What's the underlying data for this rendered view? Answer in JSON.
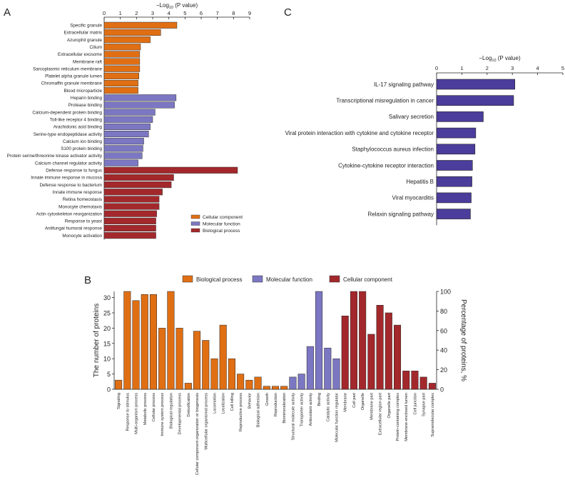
{
  "panels": {
    "a": "A",
    "b": "B",
    "c": "C"
  },
  "colors": {
    "cellular_component": "#e06f14",
    "molecular_function": "#7c77c2",
    "biological_process": "#a3282c",
    "pathway": "#4b3d9b"
  },
  "chart_data": [
    {
      "type": "bar",
      "orientation": "horizontal",
      "panel": "A",
      "xlabel": "−Log10 (P value)",
      "xlim": [
        0,
        9
      ],
      "xticks": [
        0,
        1,
        2,
        3,
        4,
        5,
        6,
        7,
        8,
        9
      ],
      "legend": [
        {
          "name": "Cellular component",
          "key": "cellular_component"
        },
        {
          "name": "Molecular function",
          "key": "molecular_function"
        },
        {
          "name": "Biological process",
          "key": "biological_process"
        }
      ],
      "legend_position": "bottom-right",
      "bars": [
        {
          "label": "Specific granule",
          "value": 4.5,
          "group": "cellular_component"
        },
        {
          "label": "Extracellular matrix",
          "value": 3.5,
          "group": "cellular_component"
        },
        {
          "label": "Azurophil granule",
          "value": 2.85,
          "group": "cellular_component"
        },
        {
          "label": "Cilium",
          "value": 2.25,
          "group": "cellular_component"
        },
        {
          "label": "Extracellular exosome",
          "value": 2.2,
          "group": "cellular_component"
        },
        {
          "label": "Membrane raft",
          "value": 2.2,
          "group": "cellular_component"
        },
        {
          "label": "Sarcoplasmic reticulum membrane",
          "value": 2.2,
          "group": "cellular_component"
        },
        {
          "label": "Platelet alpha granule lumen",
          "value": 2.15,
          "group": "cellular_component"
        },
        {
          "label": "Chromaffin granule membrane",
          "value": 2.1,
          "group": "cellular_component"
        },
        {
          "label": "Blood microparticle",
          "value": 2.1,
          "group": "cellular_component"
        },
        {
          "label": "Heparin binding",
          "value": 4.45,
          "group": "molecular_function"
        },
        {
          "label": "Protease binding",
          "value": 4.35,
          "group": "molecular_function"
        },
        {
          "label": "Calcium-dependent protein binding",
          "value": 3.15,
          "group": "molecular_function"
        },
        {
          "label": "Toll-like receptor 4 binding",
          "value": 3.0,
          "group": "molecular_function"
        },
        {
          "label": "Arachidonic acid binding",
          "value": 2.85,
          "group": "molecular_function"
        },
        {
          "label": "Serine-type endopeptidase activity",
          "value": 2.75,
          "group": "molecular_function"
        },
        {
          "label": "Calcium ion binding",
          "value": 2.45,
          "group": "molecular_function"
        },
        {
          "label": "S100 protein binding",
          "value": 2.4,
          "group": "molecular_function"
        },
        {
          "label": "Protein serine/threonine kinase activator activity",
          "value": 2.35,
          "group": "molecular_function"
        },
        {
          "label": "Calcium channel regulator activity",
          "value": 2.1,
          "group": "molecular_function"
        },
        {
          "label": "Defense response to fungus",
          "value": 8.25,
          "group": "biological_process"
        },
        {
          "label": "Innate immune response in mucosa",
          "value": 4.3,
          "group": "biological_process"
        },
        {
          "label": "Defense response to bacterium",
          "value": 4.15,
          "group": "biological_process"
        },
        {
          "label": "Innate immune response",
          "value": 3.6,
          "group": "biological_process"
        },
        {
          "label": "Retina homeostasis",
          "value": 3.4,
          "group": "biological_process"
        },
        {
          "label": "Monocyte chemotaxis",
          "value": 3.4,
          "group": "biological_process"
        },
        {
          "label": "Actin cytoskeleton reorganization",
          "value": 3.25,
          "group": "biological_process"
        },
        {
          "label": "Response to yeast",
          "value": 3.2,
          "group": "biological_process"
        },
        {
          "label": "Antifungal humoral response",
          "value": 3.2,
          "group": "biological_process"
        },
        {
          "label": "Monocyte activation",
          "value": 3.2,
          "group": "biological_process"
        }
      ]
    },
    {
      "type": "bar",
      "orientation": "vertical",
      "panel": "B",
      "ylabel": "The number of proteins",
      "ylabel_right": "Percentage of proteins, %",
      "ylim": [
        0,
        32
      ],
      "yticks": [
        0,
        5,
        10,
        15,
        20,
        25,
        30
      ],
      "ylim_right": [
        0,
        100
      ],
      "yticks_right": [
        0,
        20,
        40,
        60,
        80,
        100
      ],
      "legend": [
        {
          "name": "Biological process",
          "key": "cellular_component"
        },
        {
          "name": "Molecular function",
          "key": "molecular_function"
        },
        {
          "name": "Cellular component",
          "key": "biological_process"
        }
      ],
      "legend_position": "top",
      "bars": [
        {
          "label": "Signaling",
          "value": 3,
          "group": "cellular_component"
        },
        {
          "label": "Response to stimulus",
          "value": 32,
          "group": "cellular_component"
        },
        {
          "label": "Multi-organism process",
          "value": 29,
          "group": "cellular_component"
        },
        {
          "label": "Metabolic process",
          "value": 31,
          "group": "cellular_component"
        },
        {
          "label": "Cellular process",
          "value": 31,
          "group": "cellular_component"
        },
        {
          "label": "Immune system process",
          "value": 20,
          "group": "cellular_component"
        },
        {
          "label": "Biological regulation",
          "value": 32,
          "group": "cellular_component"
        },
        {
          "label": "Developmental process",
          "value": 20,
          "group": "cellular_component"
        },
        {
          "label": "Detoxification",
          "value": 2,
          "group": "cellular_component"
        },
        {
          "label": "Cellular component organization or biogenesis",
          "value": 19,
          "group": "cellular_component"
        },
        {
          "label": "Multicellular organismal process",
          "value": 16,
          "group": "cellular_component"
        },
        {
          "label": "Locomotion",
          "value": 10,
          "group": "cellular_component"
        },
        {
          "label": "Localization",
          "value": 21,
          "group": "cellular_component"
        },
        {
          "label": "Cell killing",
          "value": 10,
          "group": "cellular_component"
        },
        {
          "label": "Reproductive process",
          "value": 5,
          "group": "cellular_component"
        },
        {
          "label": "Behavior",
          "value": 3,
          "group": "cellular_component"
        },
        {
          "label": "Biological adhesion",
          "value": 4,
          "group": "cellular_component"
        },
        {
          "label": "Growth",
          "value": 1,
          "group": "cellular_component"
        },
        {
          "label": "Reproduction",
          "value": 1,
          "group": "cellular_component"
        },
        {
          "label": "Biomineralization",
          "value": 1,
          "group": "cellular_component"
        },
        {
          "label": "Structural molecule activity",
          "value": 4,
          "group": "molecular_function"
        },
        {
          "label": "Transporter activity",
          "value": 5,
          "group": "molecular_function"
        },
        {
          "label": "Antioxidant activity",
          "value": 14,
          "group": "molecular_function"
        },
        {
          "label": "Binding",
          "value": 32,
          "group": "molecular_function"
        },
        {
          "label": "Catalytic activity",
          "value": 13.5,
          "group": "molecular_function"
        },
        {
          "label": "Molecular function regulator",
          "value": 10,
          "group": "molecular_function"
        },
        {
          "label": "Membrane",
          "value": 24,
          "group": "biological_process"
        },
        {
          "label": "Cell part",
          "value": 32,
          "group": "biological_process"
        },
        {
          "label": "Organelle",
          "value": 32,
          "group": "biological_process"
        },
        {
          "label": "Membrane part",
          "value": 18,
          "group": "biological_process"
        },
        {
          "label": "Extracellular region part",
          "value": 27.5,
          "group": "biological_process"
        },
        {
          "label": "Organelle part",
          "value": 25,
          "group": "biological_process"
        },
        {
          "label": "Protein-containing complex",
          "value": 21,
          "group": "biological_process"
        },
        {
          "label": "Membrane-enclosed lumen",
          "value": 6,
          "group": "biological_process"
        },
        {
          "label": "Cell junction",
          "value": 6,
          "group": "biological_process"
        },
        {
          "label": "Synapse part",
          "value": 4,
          "group": "biological_process"
        },
        {
          "label": "Supramolecular complex",
          "value": 2,
          "group": "biological_process"
        }
      ]
    },
    {
      "type": "bar",
      "orientation": "horizontal",
      "panel": "C",
      "xlabel": "−Log10 (P value)",
      "xlim": [
        0,
        5
      ],
      "xticks": [
        0,
        1,
        2,
        3,
        4,
        5
      ],
      "bars": [
        {
          "label": "IL-17 signaling pathway",
          "value": 3.1,
          "group": "pathway"
        },
        {
          "label": "Transcriptional misregulation in cancer",
          "value": 3.05,
          "group": "pathway"
        },
        {
          "label": "Salivary secretion",
          "value": 1.85,
          "group": "pathway"
        },
        {
          "label": "Viral protein interaction with cytokine and cytokine receptor",
          "value": 1.55,
          "group": "pathway"
        },
        {
          "label": "Staphylococcus aureus infection",
          "value": 1.52,
          "group": "pathway"
        },
        {
          "label": "Cytokine-cytokine receptor interaction",
          "value": 1.42,
          "group": "pathway"
        },
        {
          "label": "Hepatitis B",
          "value": 1.4,
          "group": "pathway"
        },
        {
          "label": "Viral myocarditis",
          "value": 1.37,
          "group": "pathway"
        },
        {
          "label": "Relaxin signaling pathway",
          "value": 1.34,
          "group": "pathway"
        }
      ]
    }
  ]
}
